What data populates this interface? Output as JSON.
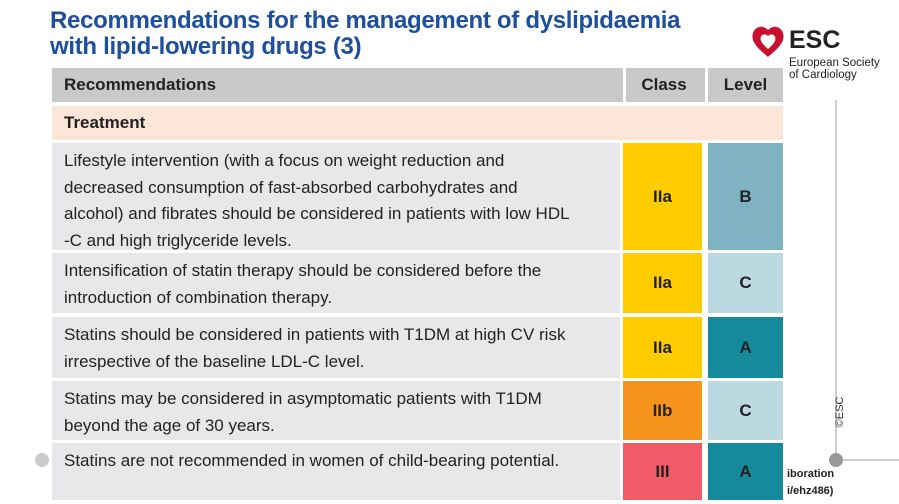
{
  "header": {
    "title_lines": [
      "Recommendations for the management of dyslipidaemia",
      "with lipid-lowering drugs (3)"
    ]
  },
  "logo": {
    "name": "ESC",
    "lines": [
      "European Society",
      "of Cardiology"
    ]
  },
  "table": {
    "columns": [
      "Recommendations",
      "Class",
      "Level"
    ],
    "section": "Treatment",
    "rows": [
      {
        "text": [
          "Lifestyle intervention (with a focus on weight reduction and",
          "decreased consumption of fast-absorbed carbohydrates and",
          "alcohol) and fibrates should be considered in patients with low HDL",
          "-C and high triglyceride levels."
        ],
        "class": "IIa",
        "level": "B",
        "class_color": "#ffcc00",
        "level_color": "#7fb2c3"
      },
      {
        "text": [
          "Intensification of statin therapy should be considered before the",
          "introduction of combination therapy."
        ],
        "class": "IIa",
        "level": "C",
        "class_color": "#ffcc00",
        "level_color": "#bcd9e1"
      },
      {
        "text": [
          "Statins should be considered in patients with T1DM at high CV risk",
          "irrespective of the baseline LDL-C level."
        ],
        "class": "IIa",
        "level": "A",
        "class_color": "#ffcc00",
        "level_color": "#148a9c"
      },
      {
        "text": [
          "Statins may be considered in asymptomatic patients with T1DM",
          "beyond the age of 30 years."
        ],
        "class": "IIb",
        "level": "C",
        "class_color": "#f7941d",
        "level_color": "#bcd9e1"
      },
      {
        "text": [
          "Statins are not recommended in women of child-bearing potential."
        ],
        "class": "III",
        "level": "A",
        "class_color": "#f15a67",
        "level_color": "#148a9c"
      }
    ]
  },
  "footer_fragments": [
    "iboration",
    "i/ehz486)"
  ],
  "copyright": "©ESC"
}
